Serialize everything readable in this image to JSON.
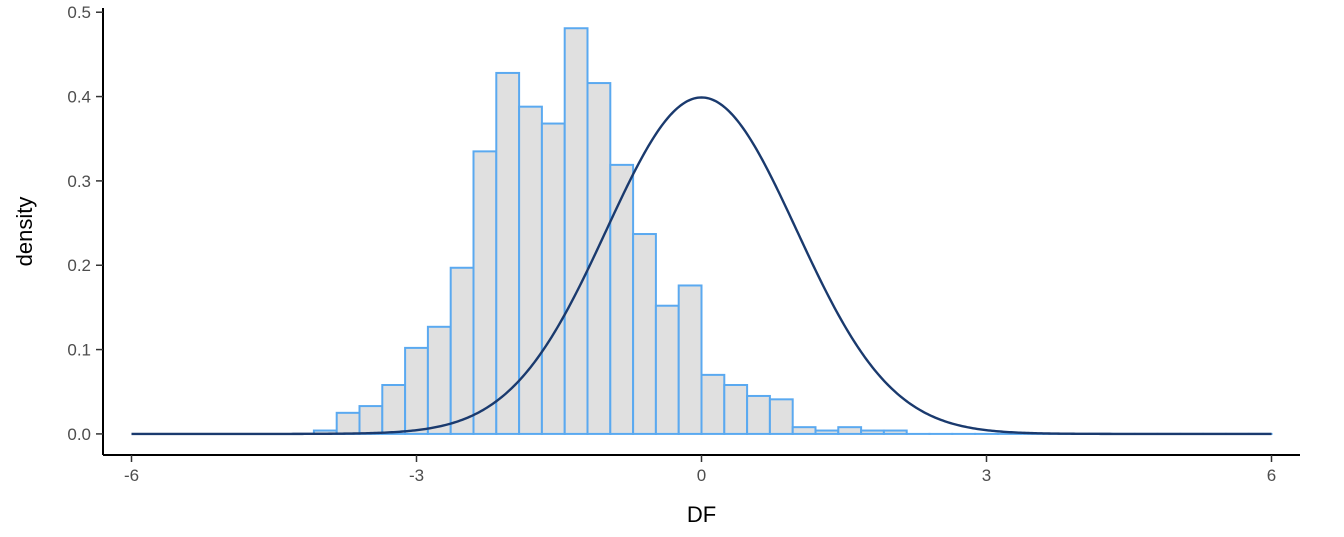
{
  "chart_data": {
    "type": "bar",
    "title": "",
    "xlabel": "DF",
    "ylabel": "density",
    "xlim": [
      -6.3,
      6.3
    ],
    "ylim": [
      -0.025,
      0.505
    ],
    "x_ticks": [
      -6,
      -3,
      0,
      3,
      6
    ],
    "x_tick_labels": [
      "-6",
      "-3",
      "0",
      "3",
      "6"
    ],
    "y_ticks": [
      0.0,
      0.1,
      0.2,
      0.3,
      0.4,
      0.5
    ],
    "y_tick_labels": [
      "0.0",
      "0.1",
      "0.2",
      "0.3",
      "0.4",
      "0.5"
    ],
    "grid": false,
    "legend": "none",
    "histogram": {
      "bin_width": 0.24,
      "bin_starts": [
        -4.08,
        -3.84,
        -3.6,
        -3.36,
        -3.12,
        -2.88,
        -2.64,
        -2.4,
        -2.16,
        -1.92,
        -1.68,
        -1.44,
        -1.2,
        -0.96,
        -0.72,
        -0.48,
        -0.24,
        0.0,
        0.24,
        0.48,
        0.72,
        0.96,
        1.2,
        1.44,
        1.68,
        1.92,
        2.16,
        2.4,
        2.64,
        2.88,
        3.12,
        3.36,
        3.6,
        3.84,
        4.08,
        4.32,
        4.56,
        4.8,
        5.04,
        5.28,
        5.52,
        5.76
      ],
      "values": [
        0.004,
        0.025,
        0.033,
        0.058,
        0.102,
        0.127,
        0.197,
        0.335,
        0.428,
        0.388,
        0.368,
        0.481,
        0.416,
        0.319,
        0.237,
        0.152,
        0.176,
        0.07,
        0.058,
        0.045,
        0.041,
        0.008,
        0.004,
        0.008,
        0.004,
        0.004,
        0.0,
        0.0,
        0.0,
        0.0,
        0.0,
        0.0,
        0.0,
        0.0,
        0.0,
        0.0,
        0.0,
        0.0,
        0.0,
        0.0,
        0.0,
        0.0
      ],
      "fill_color": "#e0e0e0",
      "edge_color": "#5aa9f0"
    },
    "curve": {
      "type": "line",
      "description": "standard normal density",
      "mean": 0,
      "sd": 1,
      "x_range": [
        -6,
        6
      ],
      "color": "#1a3a6e"
    }
  }
}
